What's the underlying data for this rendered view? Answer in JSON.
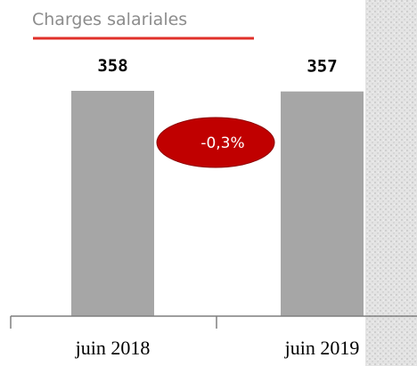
{
  "chart_data": {
    "type": "bar",
    "title": "Charges salariales",
    "categories": [
      "juin 2018",
      "juin 2019"
    ],
    "values": [
      358,
      357
    ],
    "color": "#a6a6a6",
    "annotation": "-0,3%"
  }
}
